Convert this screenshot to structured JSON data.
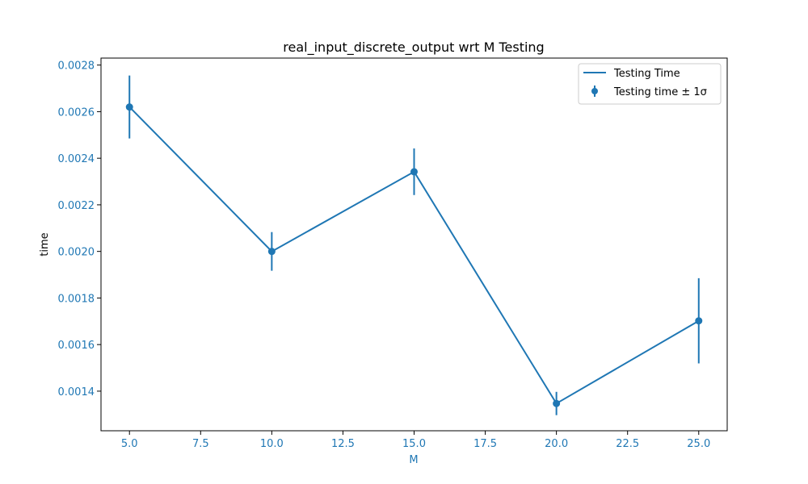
{
  "chart_data": {
    "type": "line",
    "title": "real_input_discrete_output wrt M Testing",
    "xlabel": "M",
    "ylabel": "time",
    "xlim": [
      4.0,
      26.0
    ],
    "ylim": [
      0.00123,
      0.00283
    ],
    "x_ticks": [
      "5.0",
      "7.5",
      "10.0",
      "12.5",
      "15.0",
      "17.5",
      "20.0",
      "22.5",
      "25.0"
    ],
    "y_ticks": [
      "0.0014",
      "0.0016",
      "0.0018",
      "0.0020",
      "0.0022",
      "0.0024",
      "0.0026",
      "0.0028"
    ],
    "grid": false,
    "legend_position": "top-right",
    "series": [
      {
        "name": "Testing Time",
        "kind": "line",
        "x": [
          5,
          10,
          15,
          20,
          25
        ],
        "y": [
          0.00262,
          0.002,
          0.002342,
          0.001347,
          0.001702
        ]
      },
      {
        "name": "Testing time ± 1σ",
        "kind": "errorbar",
        "x": [
          5,
          10,
          15,
          20,
          25
        ],
        "y": [
          0.00262,
          0.002,
          0.002342,
          0.001347,
          0.001702
        ],
        "yerr": [
          0.000135,
          8.3e-05,
          0.0001,
          5e-05,
          0.000183
        ]
      }
    ],
    "colors": {
      "series": "#1f77b4",
      "tick_label": "#1f77b4",
      "axis": "#000000"
    }
  }
}
